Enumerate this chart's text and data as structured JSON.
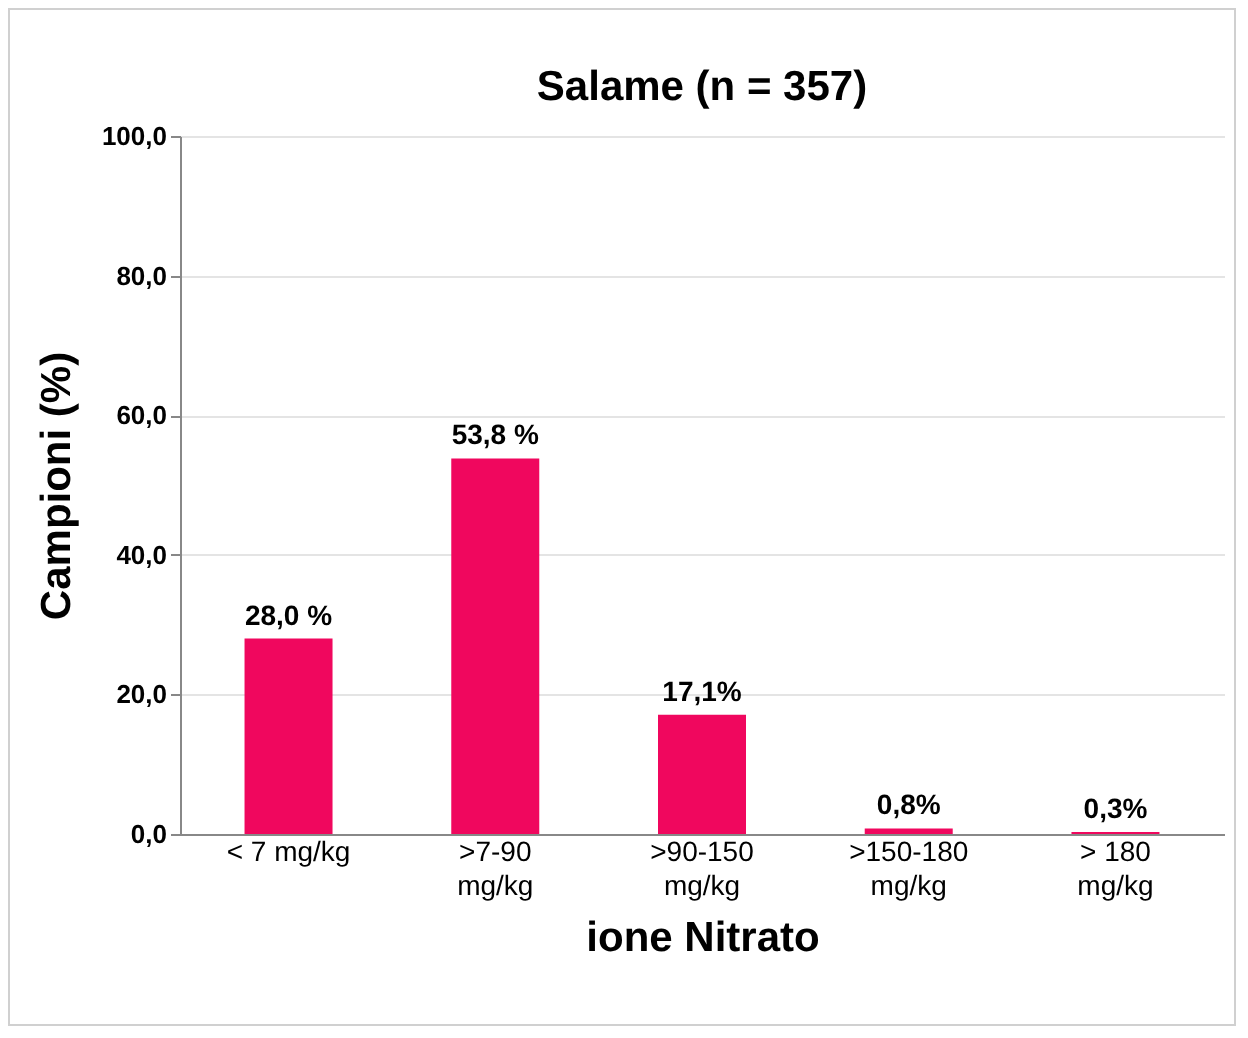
{
  "chart_data": {
    "type": "bar",
    "title": "Salame (n = 357)",
    "xlabel": "ione Nitrato",
    "ylabel": "Campioni (%)",
    "categories": [
      "< 7 mg/kg",
      ">7-90\nmg/kg",
      ">90-150\nmg/kg",
      ">150-180\nmg/kg",
      "> 180\nmg/kg"
    ],
    "values": [
      28.0,
      53.8,
      17.1,
      0.8,
      0.3
    ],
    "value_labels": [
      "28,0 %",
      "53,8 %",
      "17,1%",
      "0,8%",
      "0,3%"
    ],
    "color": "#f0075e",
    "ylim": [
      0,
      100
    ],
    "yticks": [
      {
        "value": 0,
        "label": "0,0"
      },
      {
        "value": 20,
        "label": "20,0"
      },
      {
        "value": 40,
        "label": "40,0"
      },
      {
        "value": 60,
        "label": "60,0"
      },
      {
        "value": 80,
        "label": "80,0"
      },
      {
        "value": 100,
        "label": "100,0"
      }
    ],
    "grid": "y"
  }
}
